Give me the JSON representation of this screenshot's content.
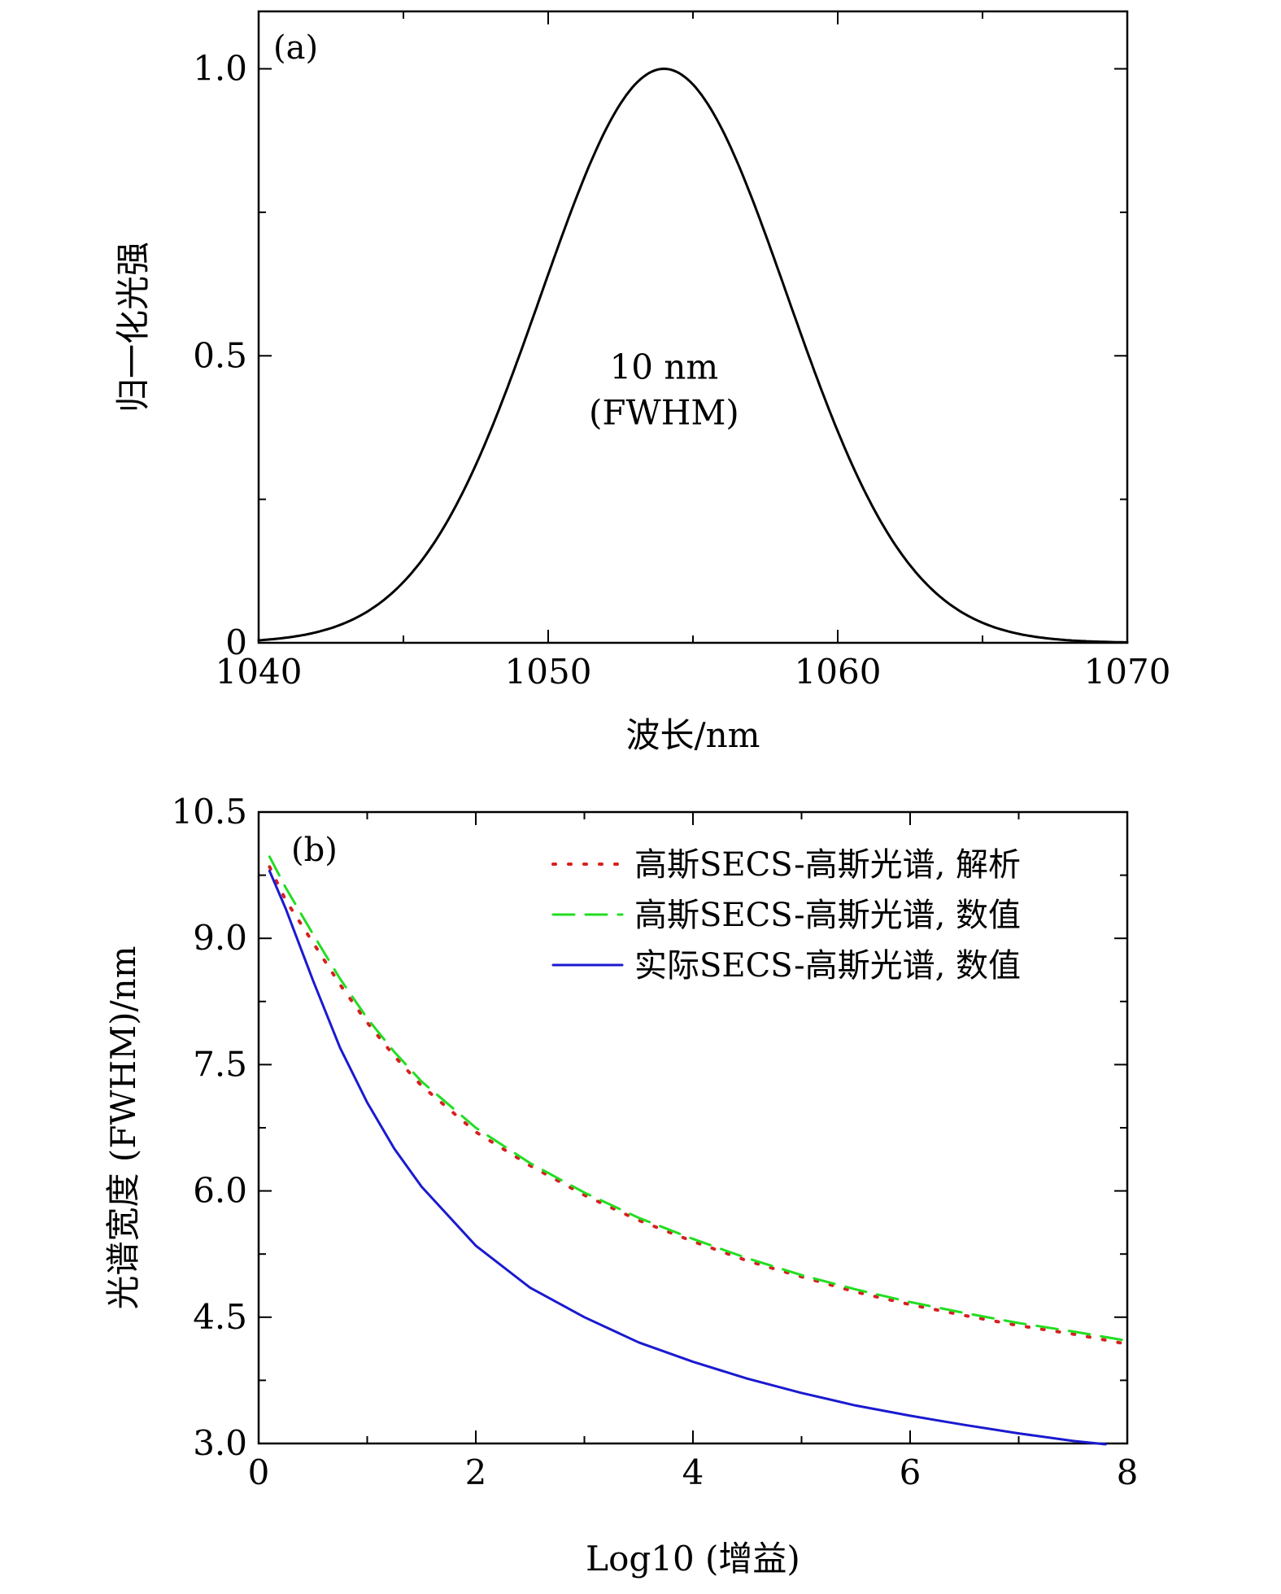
{
  "charts": [
    {
      "type": "line",
      "panel_label": "(a)",
      "xlabel": "波长/nm",
      "ylabel": "归一化光强",
      "xlim": [
        1040,
        1070
      ],
      "ylim": [
        0,
        1.1
      ],
      "xticks": [
        1040,
        1050,
        1060,
        1070
      ],
      "xtick_labels": [
        "1040",
        "1050",
        "1060",
        "1070"
      ],
      "xminor": [
        1045,
        1055,
        1065
      ],
      "yticks": [
        0,
        0.5,
        1.0
      ],
      "ytick_labels": [
        "0",
        "0.5",
        "1.0"
      ],
      "yminor": [
        0.25,
        0.75
      ],
      "annotation": [
        "10 nm",
        "(FWHM)"
      ],
      "annotation_pos": [
        1054,
        0.42
      ],
      "series": [
        {
          "color": "#000000",
          "style": "solid",
          "gaussian": {
            "center": 1054,
            "fwhm": 10,
            "amplitude": 1.0
          }
        }
      ]
    },
    {
      "type": "line",
      "panel_label": "(b)",
      "xlabel": "Log10 (增益)",
      "ylabel": "光谱宽度 (FWHM)/nm",
      "xlim": [
        0,
        8
      ],
      "ylim": [
        3.0,
        10.5
      ],
      "xticks": [
        0,
        2,
        4,
        6,
        8
      ],
      "xtick_labels": [
        "0",
        "2",
        "4",
        "6",
        "8"
      ],
      "xminor": [
        1,
        3,
        5,
        7
      ],
      "yticks": [
        3.0,
        4.5,
        6.0,
        7.5,
        9.0,
        10.5
      ],
      "ytick_labels": [
        "3.0",
        "4.5",
        "6.0",
        "7.5",
        "9.0",
        "10.5"
      ],
      "yminor": [
        3.75,
        5.25,
        6.75,
        8.25,
        9.75
      ],
      "legend_placement": "top-right",
      "series": [
        {
          "name": "高斯SECS-高斯光谱, 解析",
          "color": "#d62020",
          "style": "dotted",
          "x": [
            0.1,
            0.25,
            0.5,
            0.75,
            1.0,
            1.25,
            1.5,
            2.0,
            2.5,
            3.0,
            3.5,
            4.0,
            4.5,
            5.0,
            5.5,
            6.0,
            6.5,
            7.0,
            7.5,
            8.0
          ],
          "y": [
            9.85,
            9.45,
            8.95,
            8.45,
            8.0,
            7.6,
            7.25,
            6.7,
            6.3,
            5.95,
            5.65,
            5.4,
            5.17,
            4.98,
            4.8,
            4.65,
            4.52,
            4.4,
            4.3,
            4.18
          ]
        },
        {
          "name": "高斯SECS-高斯光谱, 数值",
          "color": "#22dd22",
          "style": "dashed",
          "x": [
            0.1,
            0.25,
            0.5,
            0.75,
            1.0,
            1.25,
            1.5,
            2.0,
            2.5,
            3.0,
            3.5,
            4.0,
            4.5,
            5.0,
            5.5,
            6.0,
            6.5,
            7.0,
            7.5,
            8.0
          ],
          "y": [
            9.97,
            9.6,
            9.05,
            8.52,
            8.05,
            7.65,
            7.3,
            6.75,
            6.33,
            5.98,
            5.68,
            5.43,
            5.2,
            5.0,
            4.83,
            4.68,
            4.55,
            4.43,
            4.33,
            4.22
          ]
        },
        {
          "name": "实际SECS-高斯光谱, 数值",
          "color": "#1a1ad0",
          "style": "solid",
          "x": [
            0.1,
            0.25,
            0.5,
            0.75,
            1.0,
            1.25,
            1.5,
            2.0,
            2.5,
            3.0,
            3.5,
            4.0,
            4.5,
            5.0,
            5.5,
            6.0,
            6.5,
            7.0,
            7.5,
            7.8
          ],
          "y": [
            9.8,
            9.35,
            8.5,
            7.7,
            7.05,
            6.5,
            6.05,
            5.35,
            4.85,
            4.5,
            4.2,
            3.97,
            3.77,
            3.6,
            3.45,
            3.33,
            3.22,
            3.12,
            3.03,
            2.99
          ]
        }
      ]
    }
  ]
}
